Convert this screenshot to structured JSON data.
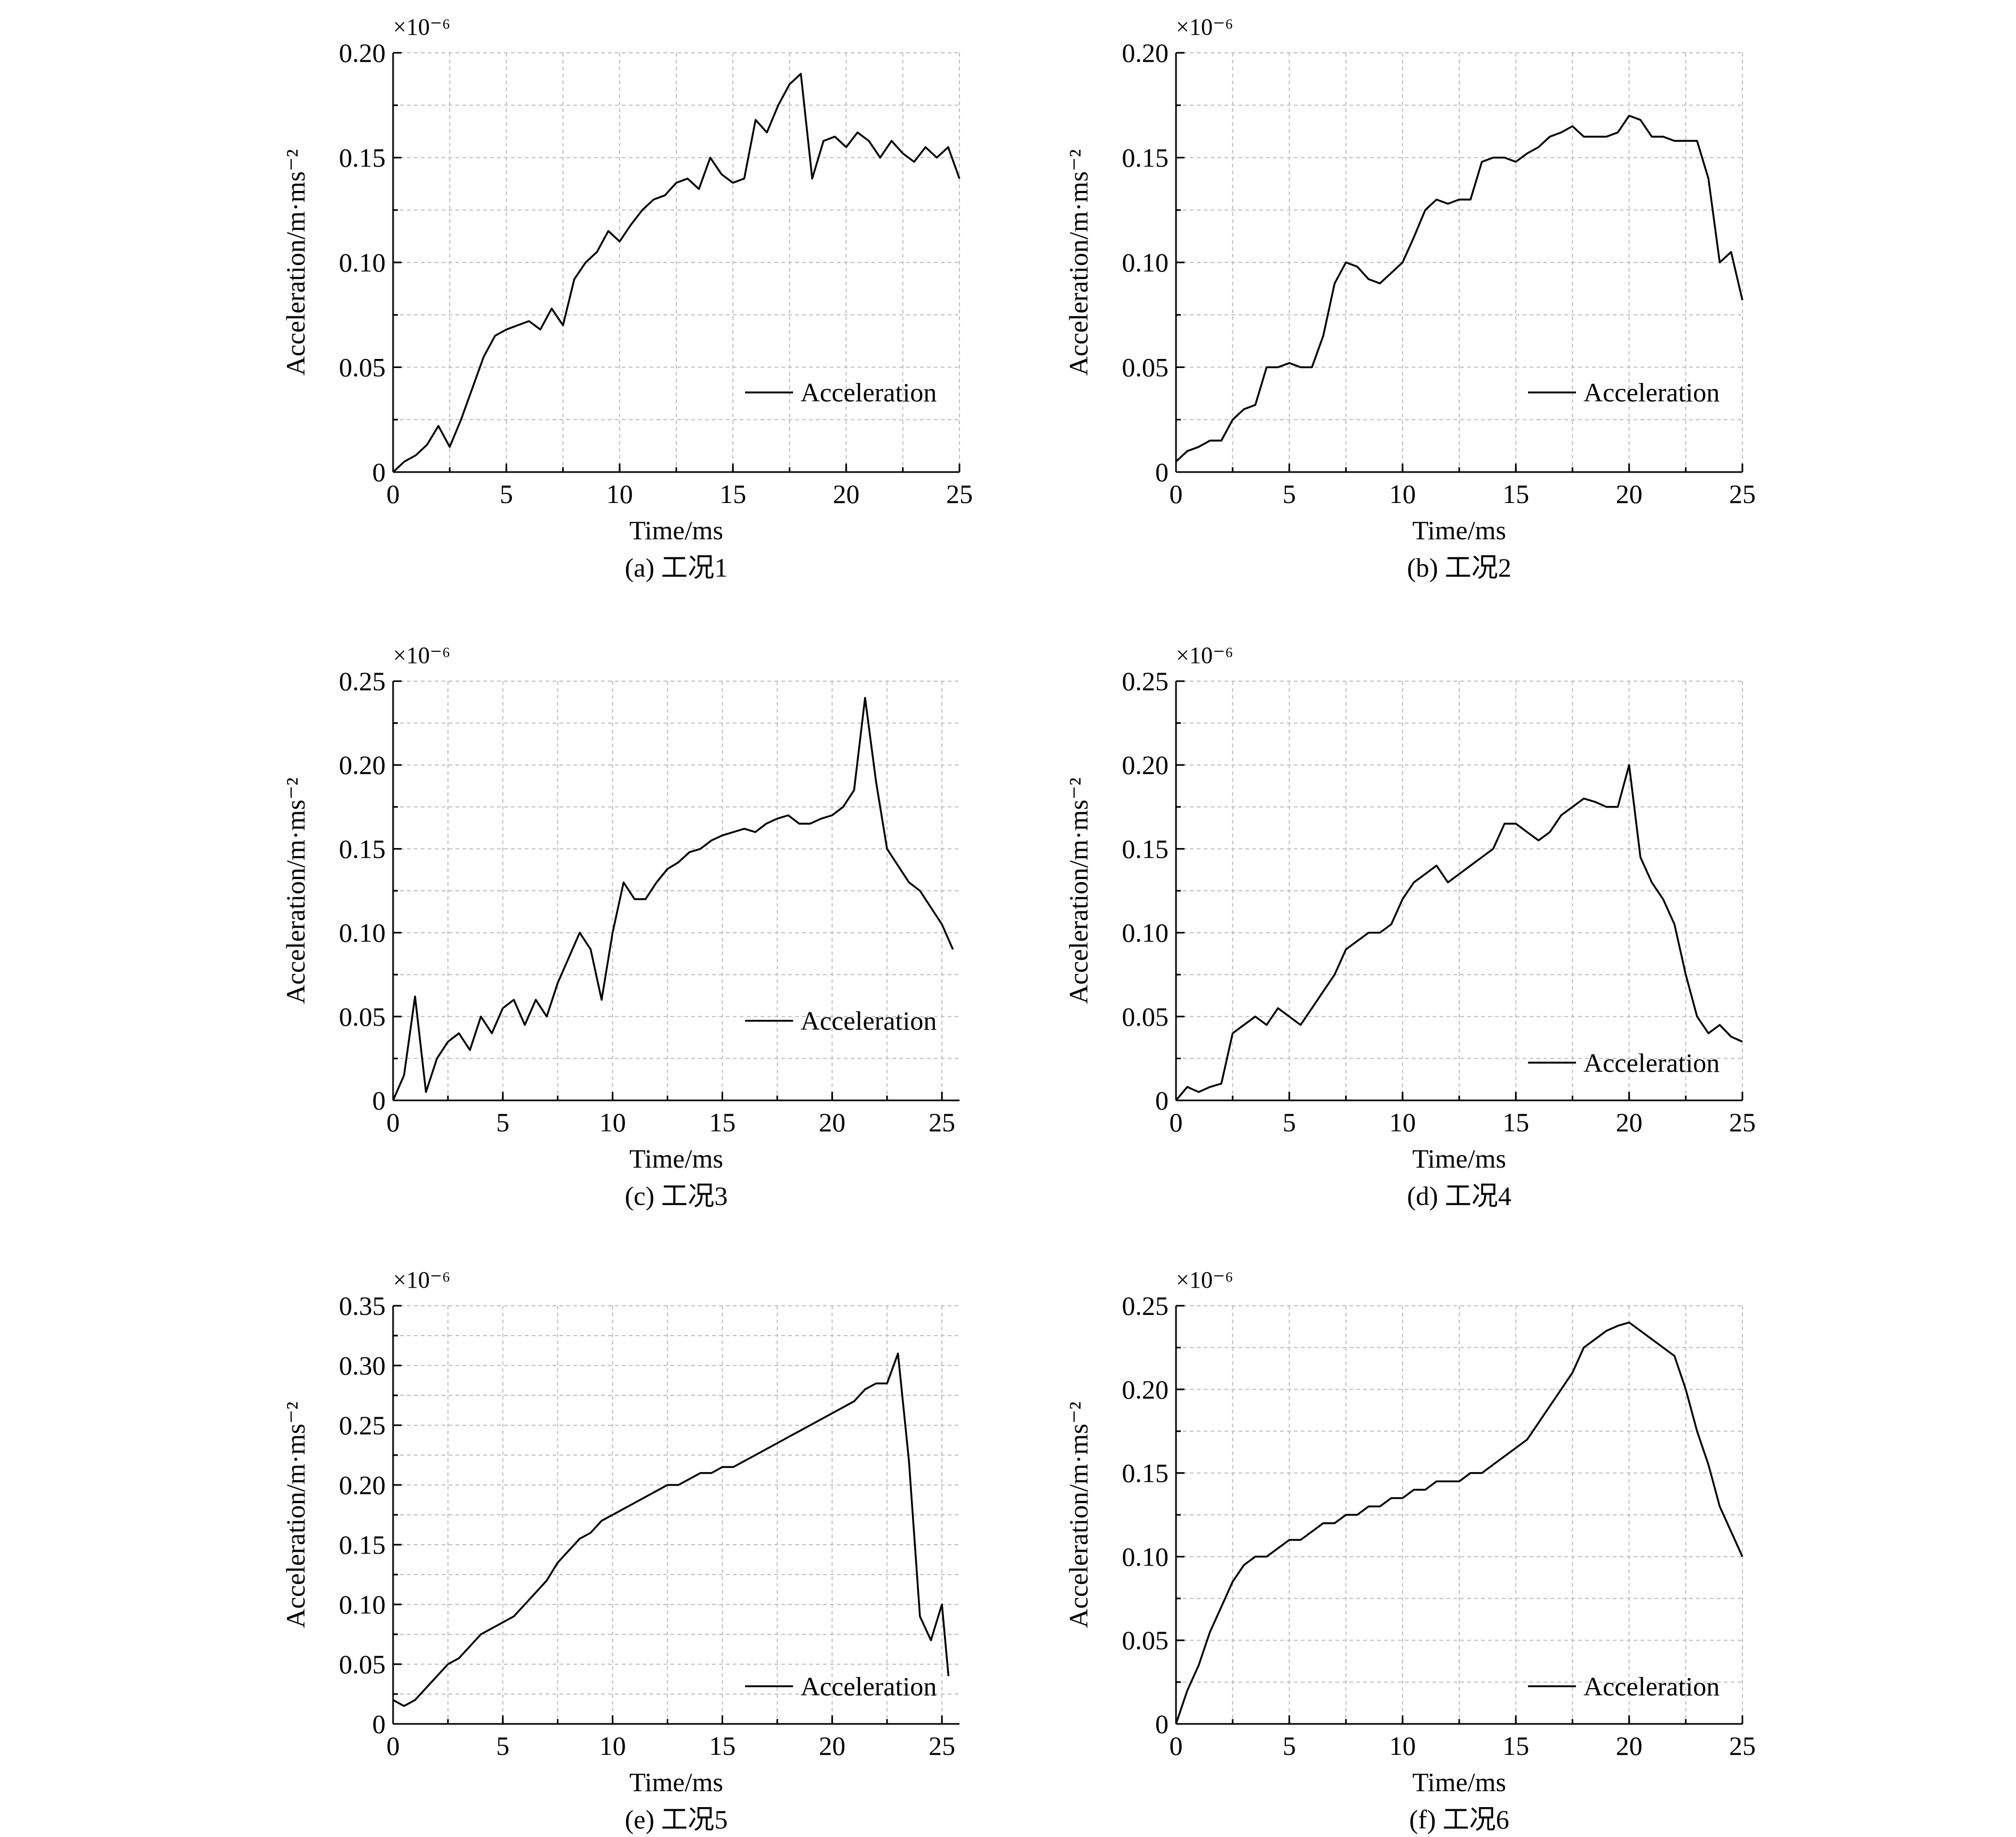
{
  "figure": {
    "line_color": "#000000",
    "grid_color": "#bfbfbf",
    "background": "#ffffff"
  },
  "chart_data": [
    {
      "type": "line",
      "caption": "(a) 工况1",
      "xlabel": "Time/ms",
      "ylabel": "Acceleration/m·ms⁻²",
      "multiplier": "×10⁻⁶",
      "xlim": [
        0,
        25
      ],
      "ylim": [
        0,
        0.2
      ],
      "xticks": [
        0,
        5,
        10,
        15,
        20,
        25
      ],
      "yticks": [
        0,
        0.05,
        0.1,
        0.15,
        0.2
      ],
      "ytick_labels": [
        "0",
        "0.05",
        "0.10",
        "0.15",
        "0.20"
      ],
      "grid": true,
      "legend": "right",
      "series": [
        {
          "name": "Acceleration",
          "x": [
            0,
            0.5,
            1,
            1.5,
            2,
            2.5,
            3,
            3.5,
            4,
            4.5,
            5,
            5.5,
            6,
            6.5,
            7,
            7.5,
            8,
            8.5,
            9,
            9.5,
            10,
            10.5,
            11,
            11.5,
            12,
            12.5,
            13,
            13.5,
            14,
            14.5,
            15,
            15.5,
            16,
            16.5,
            17,
            17.5,
            18,
            18.5,
            19,
            19.5,
            20,
            20.5,
            21,
            21.5,
            22,
            22.5,
            23,
            23.5,
            24,
            24.5,
            25
          ],
          "y": [
            0,
            0.005,
            0.008,
            0.013,
            0.022,
            0.012,
            0.025,
            0.04,
            0.055,
            0.065,
            0.068,
            0.07,
            0.072,
            0.068,
            0.078,
            0.07,
            0.092,
            0.1,
            0.105,
            0.115,
            0.11,
            0.118,
            0.125,
            0.13,
            0.132,
            0.138,
            0.14,
            0.135,
            0.15,
            0.142,
            0.138,
            0.14,
            0.168,
            0.162,
            0.175,
            0.185,
            0.19,
            0.14,
            0.158,
            0.16,
            0.155,
            0.162,
            0.158,
            0.15,
            0.158,
            0.152,
            0.148,
            0.155,
            0.15,
            0.155,
            0.14
          ]
        }
      ]
    },
    {
      "type": "line",
      "caption": "(b) 工况2",
      "xlabel": "Time/ms",
      "ylabel": "Acceleration/m·ms⁻²",
      "multiplier": "×10⁻⁶",
      "xlim": [
        0,
        25
      ],
      "ylim": [
        0,
        0.2
      ],
      "xticks": [
        0,
        5,
        10,
        15,
        20,
        25
      ],
      "yticks": [
        0,
        0.05,
        0.1,
        0.15,
        0.2
      ],
      "ytick_labels": [
        "0",
        "0.05",
        "0.10",
        "0.15",
        "0.20"
      ],
      "grid": true,
      "legend": "right",
      "series": [
        {
          "name": "Acceleration",
          "x": [
            0,
            0.5,
            1,
            1.5,
            2,
            2.5,
            3,
            3.5,
            4,
            4.5,
            5,
            5.5,
            6,
            6.5,
            7,
            7.5,
            8,
            8.5,
            9,
            9.5,
            10,
            10.5,
            11,
            11.5,
            12,
            12.5,
            13,
            13.5,
            14,
            14.5,
            15,
            15.5,
            16,
            16.5,
            17,
            17.5,
            18,
            18.5,
            19,
            19.5,
            20,
            20.5,
            21,
            21.5,
            22,
            22.5,
            23,
            23.5,
            24,
            24.5,
            25
          ],
          "y": [
            0.005,
            0.01,
            0.012,
            0.015,
            0.015,
            0.025,
            0.03,
            0.032,
            0.05,
            0.05,
            0.052,
            0.05,
            0.05,
            0.065,
            0.09,
            0.1,
            0.098,
            0.092,
            0.09,
            0.095,
            0.1,
            0.112,
            0.125,
            0.13,
            0.128,
            0.13,
            0.13,
            0.148,
            0.15,
            0.15,
            0.148,
            0.152,
            0.155,
            0.16,
            0.162,
            0.165,
            0.16,
            0.16,
            0.16,
            0.162,
            0.17,
            0.168,
            0.16,
            0.16,
            0.158,
            0.158,
            0.158,
            0.14,
            0.1,
            0.105,
            0.082
          ]
        }
      ]
    },
    {
      "type": "line",
      "caption": "(c) 工况3",
      "xlabel": "Time/ms",
      "ylabel": "Acceleration/m·ms⁻²",
      "multiplier": "×10⁻⁶",
      "xlim": [
        0,
        25.8
      ],
      "ylim": [
        0,
        0.25
      ],
      "xticks": [
        0,
        5,
        10,
        15,
        20,
        25
      ],
      "yticks": [
        0,
        0.05,
        0.1,
        0.15,
        0.2,
        0.25
      ],
      "ytick_labels": [
        "0",
        "0.05",
        "0.10",
        "0.15",
        "0.20",
        "0.25"
      ],
      "grid": true,
      "legend": "right",
      "series": [
        {
          "name": "Acceleration",
          "x": [
            0,
            0.5,
            1,
            1.5,
            2,
            2.5,
            3,
            3.5,
            4,
            4.5,
            5,
            5.5,
            6,
            6.5,
            7,
            7.5,
            8,
            8.5,
            9,
            9.5,
            10,
            10.5,
            11,
            11.5,
            12,
            12.5,
            13,
            13.5,
            14,
            14.5,
            15,
            15.5,
            16,
            16.5,
            17,
            17.5,
            18,
            18.5,
            19,
            19.5,
            20,
            20.5,
            21,
            21.5,
            22,
            22.5,
            23,
            23.5,
            24,
            24.5,
            25,
            25.5
          ],
          "y": [
            0,
            0.015,
            0.062,
            0.005,
            0.025,
            0.035,
            0.04,
            0.03,
            0.05,
            0.04,
            0.055,
            0.06,
            0.045,
            0.06,
            0.05,
            0.07,
            0.085,
            0.1,
            0.09,
            0.06,
            0.1,
            0.13,
            0.12,
            0.12,
            0.13,
            0.138,
            0.142,
            0.148,
            0.15,
            0.155,
            0.158,
            0.16,
            0.162,
            0.16,
            0.165,
            0.168,
            0.17,
            0.165,
            0.165,
            0.168,
            0.17,
            0.175,
            0.185,
            0.24,
            0.19,
            0.15,
            0.14,
            0.13,
            0.125,
            0.115,
            0.105,
            0.09
          ]
        }
      ]
    },
    {
      "type": "line",
      "caption": "(d) 工况4",
      "xlabel": "Time/ms",
      "ylabel": "Acceleration/m·ms⁻²",
      "multiplier": "×10⁻⁶",
      "xlim": [
        0,
        25
      ],
      "ylim": [
        0,
        0.25
      ],
      "xticks": [
        0,
        5,
        10,
        15,
        20,
        25
      ],
      "yticks": [
        0,
        0.05,
        0.1,
        0.15,
        0.2,
        0.25
      ],
      "ytick_labels": [
        "0",
        "0.05",
        "0.10",
        "0.15",
        "0.20",
        "0.25"
      ],
      "grid": true,
      "legend": "bottom-right",
      "series": [
        {
          "name": "Acceleration",
          "x": [
            0,
            0.5,
            1,
            1.5,
            2,
            2.5,
            3,
            3.5,
            4,
            4.5,
            5,
            5.5,
            6,
            6.5,
            7,
            7.5,
            8,
            8.5,
            9,
            9.5,
            10,
            10.5,
            11,
            11.5,
            12,
            12.5,
            13,
            13.5,
            14,
            14.5,
            15,
            15.5,
            16,
            16.5,
            17,
            17.5,
            18,
            18.5,
            19,
            19.5,
            20,
            20.5,
            21,
            21.5,
            22,
            22.5,
            23,
            23.5,
            24,
            24.5,
            25
          ],
          "y": [
            0,
            0.008,
            0.005,
            0.008,
            0.01,
            0.04,
            0.045,
            0.05,
            0.045,
            0.055,
            0.05,
            0.045,
            0.055,
            0.065,
            0.075,
            0.09,
            0.095,
            0.1,
            0.1,
            0.105,
            0.12,
            0.13,
            0.135,
            0.14,
            0.13,
            0.135,
            0.14,
            0.145,
            0.15,
            0.165,
            0.165,
            0.16,
            0.155,
            0.16,
            0.17,
            0.175,
            0.18,
            0.178,
            0.175,
            0.175,
            0.2,
            0.145,
            0.13,
            0.12,
            0.105,
            0.075,
            0.05,
            0.04,
            0.045,
            0.038,
            0.035
          ]
        }
      ]
    },
    {
      "type": "line",
      "caption": "(e) 工况5",
      "xlabel": "Time/ms",
      "ylabel": "Acceleration/m·ms⁻²",
      "multiplier": "×10⁻⁶",
      "xlim": [
        0,
        25.8
      ],
      "ylim": [
        0,
        0.35
      ],
      "xticks": [
        0,
        5,
        10,
        15,
        20,
        25
      ],
      "yticks": [
        0,
        0.05,
        0.1,
        0.15,
        0.2,
        0.25,
        0.3,
        0.35
      ],
      "ytick_labels": [
        "0",
        "0.05",
        "0.10",
        "0.15",
        "0.20",
        "0.25",
        "0.30",
        "0.35"
      ],
      "grid": true,
      "legend": "bottom-right",
      "series": [
        {
          "name": "Acceleration",
          "x": [
            0,
            0.5,
            1,
            1.5,
            2,
            2.5,
            3,
            3.5,
            4,
            4.5,
            5,
            5.5,
            6,
            6.5,
            7,
            7.5,
            8,
            8.5,
            9,
            9.5,
            10,
            10.5,
            11,
            11.5,
            12,
            12.5,
            13,
            13.5,
            14,
            14.5,
            15,
            15.5,
            16,
            16.5,
            17,
            17.5,
            18,
            18.5,
            19,
            19.5,
            20,
            20.5,
            21,
            21.5,
            22,
            22.5,
            23,
            23.5,
            24,
            24.5,
            25,
            25.3
          ],
          "y": [
            0.02,
            0.015,
            0.02,
            0.03,
            0.04,
            0.05,
            0.055,
            0.065,
            0.075,
            0.08,
            0.085,
            0.09,
            0.1,
            0.11,
            0.12,
            0.135,
            0.145,
            0.155,
            0.16,
            0.17,
            0.175,
            0.18,
            0.185,
            0.19,
            0.195,
            0.2,
            0.2,
            0.205,
            0.21,
            0.21,
            0.215,
            0.215,
            0.22,
            0.225,
            0.23,
            0.235,
            0.24,
            0.245,
            0.25,
            0.255,
            0.26,
            0.265,
            0.27,
            0.28,
            0.285,
            0.285,
            0.31,
            0.22,
            0.09,
            0.07,
            0.1,
            0.04
          ]
        }
      ]
    },
    {
      "type": "line",
      "caption": "(f) 工况6",
      "xlabel": "Time/ms",
      "ylabel": "Acceleration/m·ms⁻²",
      "multiplier": "×10⁻⁶",
      "xlim": [
        0,
        25
      ],
      "ylim": [
        0,
        0.25
      ],
      "xticks": [
        0,
        5,
        10,
        15,
        20,
        25
      ],
      "yticks": [
        0,
        0.05,
        0.1,
        0.15,
        0.2,
        0.25
      ],
      "ytick_labels": [
        "0",
        "0.05",
        "0.10",
        "0.15",
        "0.20",
        "0.25"
      ],
      "grid": true,
      "legend": "bottom-right",
      "series": [
        {
          "name": "Acceleration",
          "x": [
            0,
            0.5,
            1,
            1.5,
            2,
            2.5,
            3,
            3.5,
            4,
            4.5,
            5,
            5.5,
            6,
            6.5,
            7,
            7.5,
            8,
            8.5,
            9,
            9.5,
            10,
            10.5,
            11,
            11.5,
            12,
            12.5,
            13,
            13.5,
            14,
            14.5,
            15,
            15.5,
            16,
            16.5,
            17,
            17.5,
            18,
            18.5,
            19,
            19.5,
            20,
            20.5,
            21,
            21.5,
            22,
            22.5,
            23,
            23.5,
            24,
            24.5,
            25
          ],
          "y": [
            0,
            0.02,
            0.035,
            0.055,
            0.07,
            0.085,
            0.095,
            0.1,
            0.1,
            0.105,
            0.11,
            0.11,
            0.115,
            0.12,
            0.12,
            0.125,
            0.125,
            0.13,
            0.13,
            0.135,
            0.135,
            0.14,
            0.14,
            0.145,
            0.145,
            0.145,
            0.15,
            0.15,
            0.155,
            0.16,
            0.165,
            0.17,
            0.18,
            0.19,
            0.2,
            0.21,
            0.225,
            0.23,
            0.235,
            0.238,
            0.24,
            0.235,
            0.23,
            0.225,
            0.22,
            0.2,
            0.175,
            0.155,
            0.13,
            0.115,
            0.1
          ]
        }
      ]
    }
  ]
}
